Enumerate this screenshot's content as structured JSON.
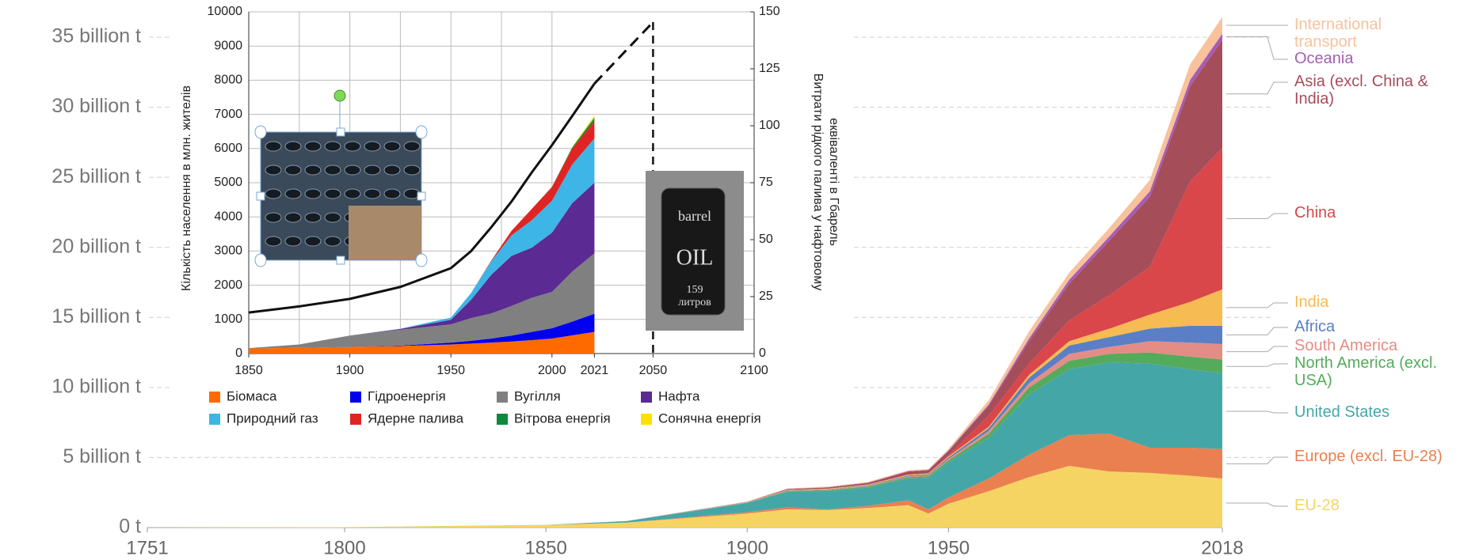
{
  "chart_data": [
    {
      "type": "area",
      "x": [
        1751,
        1800,
        1850,
        1870,
        1900,
        1910,
        1920,
        1930,
        1940,
        1945,
        1950,
        1960,
        1970,
        1980,
        1990,
        2000,
        2010,
        2018
      ],
      "xlim": [
        1751,
        2018
      ],
      "xticks": [
        1751,
        1800,
        1850,
        1900,
        1950,
        2018
      ],
      "ylim": [
        0,
        37
      ],
      "yticks": [
        {
          "value": 0,
          "label": "0 t"
        },
        {
          "value": 5,
          "label": "5 billion t"
        },
        {
          "value": 10,
          "label": "10 billion t"
        },
        {
          "value": 15,
          "label": "15 billion t"
        },
        {
          "value": 20,
          "label": "20 billion t"
        },
        {
          "value": 25,
          "label": "25 billion t"
        },
        {
          "value": 30,
          "label": "30 billion t"
        },
        {
          "value": 35,
          "label": "35 billion t"
        }
      ],
      "grid": true,
      "series": [
        {
          "name": "EU-28",
          "color": "#f6d463",
          "values": [
            0.01,
            0.03,
            0.18,
            0.35,
            1.0,
            1.3,
            1.25,
            1.4,
            1.6,
            1.0,
            1.7,
            2.6,
            3.6,
            4.4,
            4.0,
            3.9,
            3.7,
            3.5
          ]
        },
        {
          "name": "Europe (excl. EU-28)",
          "color": "#ea8050",
          "values": [
            0,
            0,
            0,
            0.01,
            0.1,
            0.15,
            0.05,
            0.15,
            0.35,
            0.3,
            0.45,
            0.9,
            1.6,
            2.2,
            2.7,
            1.8,
            2.0,
            2.1
          ]
        },
        {
          "name": "United States",
          "color": "#45a6a8",
          "values": [
            0,
            0,
            0.01,
            0.1,
            0.65,
            1.1,
            1.3,
            1.3,
            1.55,
            2.25,
            2.5,
            2.9,
            4.3,
            4.7,
            5.1,
            6.0,
            5.6,
            5.4
          ]
        },
        {
          "name": "North America (excl. USA)",
          "color": "#55ab5c",
          "values": [
            0,
            0,
            0,
            0.005,
            0.03,
            0.06,
            0.07,
            0.08,
            0.1,
            0.12,
            0.15,
            0.3,
            0.5,
            0.6,
            0.6,
            0.8,
            0.9,
            1.0
          ]
        },
        {
          "name": "South America",
          "color": "#e48c86",
          "values": [
            0,
            0,
            0,
            0,
            0.01,
            0.02,
            0.03,
            0.04,
            0.05,
            0.06,
            0.1,
            0.2,
            0.3,
            0.5,
            0.5,
            0.8,
            1.0,
            1.1
          ]
        },
        {
          "name": "Africa",
          "color": "#5a7fc6",
          "values": [
            0,
            0,
            0,
            0,
            0.01,
            0.02,
            0.03,
            0.04,
            0.06,
            0.07,
            0.1,
            0.2,
            0.4,
            0.6,
            0.7,
            0.9,
            1.2,
            1.3
          ]
        },
        {
          "name": "India",
          "color": "#f6bb52",
          "values": [
            0,
            0,
            0,
            0,
            0.01,
            0.03,
            0.04,
            0.05,
            0.06,
            0.06,
            0.08,
            0.1,
            0.2,
            0.3,
            0.6,
            1.0,
            1.7,
            2.6
          ]
        },
        {
          "name": "China",
          "color": "#d9474a",
          "values": [
            0,
            0,
            0,
            0,
            0,
            0.01,
            0.01,
            0.02,
            0.03,
            0.03,
            0.08,
            0.8,
            0.8,
            1.5,
            2.4,
            3.4,
            8.6,
            10.1
          ]
        },
        {
          "name": "Asia (excl. China & India)",
          "color": "#a64d5a",
          "values": [
            0,
            0,
            0,
            0,
            0.02,
            0.05,
            0.08,
            0.1,
            0.2,
            0.2,
            0.3,
            0.7,
            1.6,
            2.6,
            3.9,
            5.0,
            6.8,
            7.7
          ]
        },
        {
          "name": "Oceania",
          "color": "#a65cb6",
          "values": [
            0,
            0,
            0,
            0,
            0.01,
            0.02,
            0.02,
            0.03,
            0.03,
            0.03,
            0.05,
            0.1,
            0.2,
            0.3,
            0.3,
            0.4,
            0.45,
            0.45
          ]
        },
        {
          "name": "International transport",
          "color": "#f7c29c",
          "values": [
            0,
            0,
            0,
            0,
            0.02,
            0.04,
            0.04,
            0.05,
            0.06,
            0.06,
            0.1,
            0.3,
            0.5,
            0.5,
            0.6,
            0.8,
            1.1,
            1.2
          ]
        }
      ]
    },
    {
      "type": "area",
      "x": [
        1850,
        1875,
        1900,
        1925,
        1950,
        1960,
        1970,
        1980,
        1990,
        2000,
        2010,
        2021
      ],
      "xlim": [
        1850,
        2100
      ],
      "xticks": [
        1850,
        1900,
        1950,
        2000,
        2021,
        2050,
        2100
      ],
      "ylim": [
        0,
        10000
      ],
      "yticks": [
        0,
        1000,
        2000,
        3000,
        4000,
        5000,
        6000,
        7000,
        8000,
        9000,
        10000
      ],
      "y2lim": [
        0,
        150
      ],
      "y2ticks": [
        0,
        25,
        50,
        75,
        100,
        125,
        150
      ],
      "y_label": "Кількість населення в  млн. жителів",
      "y2_label": [
        "Витрати рідкого палива у нафтовому",
        "еквіваленті в Гбарель"
      ],
      "grid": true,
      "series": [
        {
          "name": "Біомаса",
          "color": "#ff6a00",
          "axis": "y2",
          "values": [
            2.2,
            2.5,
            2.9,
            3.3,
            4.0,
            4.4,
            4.8,
            5.3,
            5.9,
            6.6,
            8.0,
            9.5
          ]
        },
        {
          "name": "Гідроенергія",
          "color": "#0000ee",
          "axis": "y2",
          "values": [
            0,
            0,
            0,
            0.2,
            0.8,
            1.2,
            1.8,
            2.6,
            3.6,
            4.5,
            6.0,
            8.0
          ]
        },
        {
          "name": "Вугілля",
          "color": "#808080",
          "axis": "y2",
          "values": [
            0.2,
            1.5,
            5,
            7,
            8,
            10,
            11,
            13,
            15,
            16,
            22,
            26.5
          ]
        },
        {
          "name": "Нафта",
          "color": "#5b2a92",
          "axis": "y2",
          "values": [
            0,
            0,
            0,
            0.3,
            2,
            8,
            17,
            22,
            22,
            26,
            30,
            31
          ]
        },
        {
          "name": "Природний газ",
          "color": "#3db5e6",
          "axis": "y2",
          "values": [
            0,
            0,
            0,
            0.1,
            1,
            3,
            6,
            9,
            12,
            14,
            17,
            19.5
          ]
        },
        {
          "name": "Ядерне палива",
          "color": "#e02424",
          "axis": "y2",
          "values": [
            0,
            0,
            0,
            0,
            0,
            0,
            0.3,
            2,
            5,
            6,
            7,
            7.5
          ]
        },
        {
          "name": "Вітрова енергія",
          "color": "#0a8a3a",
          "axis": "y2",
          "values": [
            0,
            0,
            0,
            0,
            0,
            0,
            0,
            0,
            0,
            0.1,
            0.5,
            1.5
          ]
        },
        {
          "name": "Сонячна енергія",
          "color": "#ffe000",
          "axis": "y2",
          "values": [
            0,
            0,
            0,
            0,
            0,
            0,
            0,
            0,
            0,
            0.05,
            0.2,
            1.0
          ]
        }
      ],
      "lines": [
        {
          "color": "#111111",
          "values": [
            1200,
            1380,
            1600,
            1950,
            2500,
            3000,
            3700,
            4450,
            5300,
            6100,
            6950,
            7900
          ]
        },
        {
          "color": "#111111",
          "dashed": true,
          "x": [
            2021,
            2050
          ],
          "values": [
            7900,
            9700
          ]
        }
      ],
      "barrel_text": [
        "barrel",
        "OIL",
        "159",
        "литров"
      ]
    }
  ]
}
